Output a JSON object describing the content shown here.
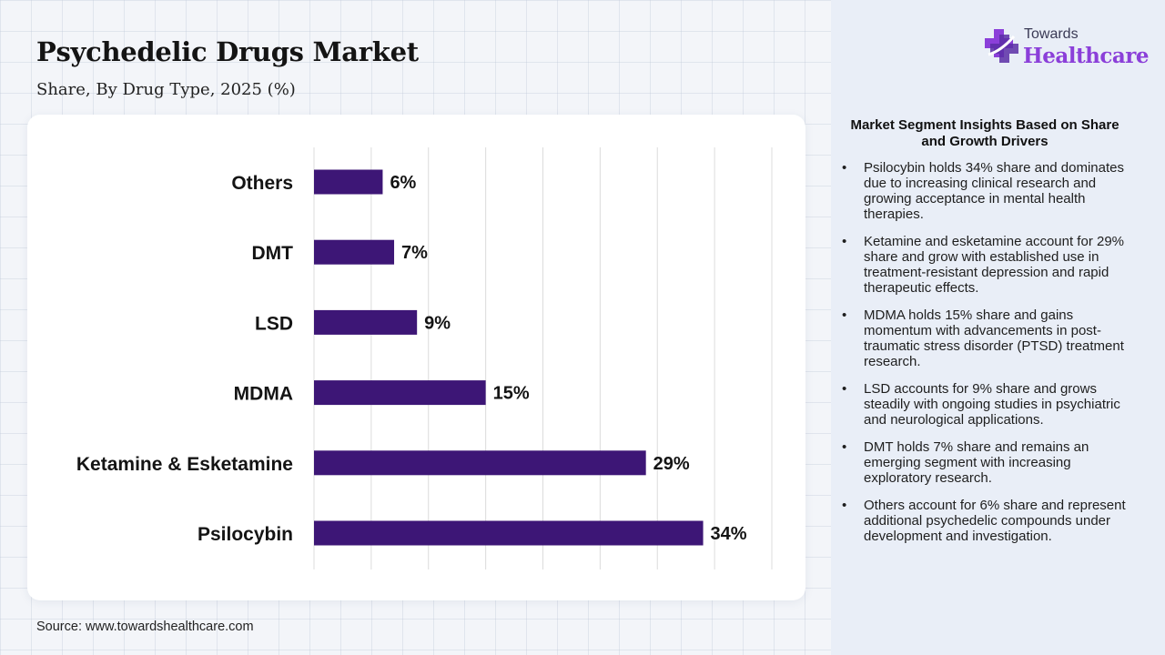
{
  "header": {
    "title": "Psychedelic Drugs Market",
    "subtitle": "Share, By Drug Type, 2025 (%)"
  },
  "brand": {
    "top": "Towards",
    "main": "Healthcare",
    "icon": "plus-cross-icon",
    "colors": {
      "primary": "#8b3fd9",
      "secondary": "#5a2ea6"
    }
  },
  "chart_data": {
    "type": "bar",
    "orientation": "horizontal",
    "categories": [
      "Others",
      "DMT",
      "LSD",
      "MDMA",
      "Ketamine & Esketamine",
      "Psilocybin"
    ],
    "values": [
      6,
      7,
      9,
      15,
      29,
      34
    ],
    "value_labels": [
      "6%",
      "7%",
      "9%",
      "15%",
      "29%",
      "34%"
    ],
    "unit": "%",
    "xlim": [
      0,
      40
    ],
    "grid": true,
    "bar_color": "#3d1676"
  },
  "insights": {
    "title": "Market Segment Insights Based on Share and Growth Drivers",
    "bullet": "•",
    "items": [
      "Psilocybin holds 34% share and dominates due to increasing clinical research and growing acceptance in mental health therapies.",
      "Ketamine and esketamine account for 29% share and grow with established use in treatment-resistant depression and rapid therapeutic effects.",
      "MDMA holds 15% share and gains momentum with advancements in post-traumatic stress disorder (PTSD) treatment research.",
      "LSD accounts for 9% share and grows steadily with ongoing studies in psychiatric and neurological applications.",
      "DMT holds 7% share and remains an emerging segment with increasing exploratory research.",
      "Others account for 6% share and represent additional psychedelic compounds under development and investigation."
    ]
  },
  "footer": {
    "source": "Source: www.towardshealthcare.com"
  }
}
